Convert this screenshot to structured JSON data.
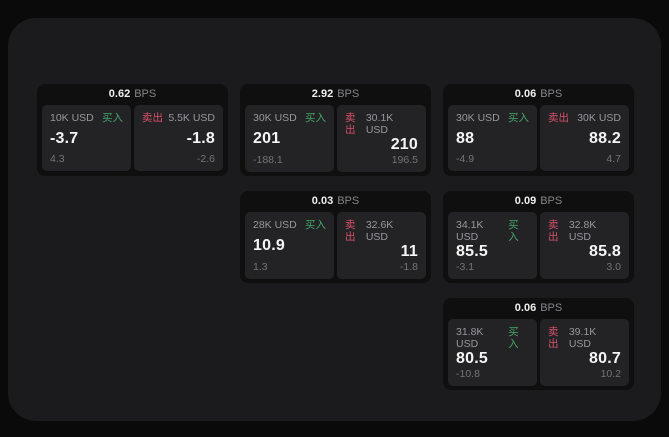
{
  "labels": {
    "buy": "买入",
    "sell": "卖出",
    "bps_unit": "BPS"
  },
  "colors": {
    "buy_accent": "#45a469",
    "sell_accent": "#d8506a",
    "panel_bg": "#1b1b1d",
    "card_bg": "#0f0f10",
    "tile_bg": "#232325"
  },
  "cards": [
    {
      "row": 0,
      "col": 0,
      "bps": "0.62",
      "buy": {
        "amount": "10K USD",
        "value": "-3.7",
        "change": "4.3"
      },
      "sell": {
        "amount": "5.5K USD",
        "value": "-1.8",
        "change": "-2.6"
      }
    },
    {
      "row": 0,
      "col": 1,
      "bps": "2.92",
      "buy": {
        "amount": "30K USD",
        "value": "201",
        "change": "-188.1"
      },
      "sell": {
        "amount": "30.1K USD",
        "value": "210",
        "change": "196.5"
      }
    },
    {
      "row": 0,
      "col": 2,
      "bps": "0.06",
      "buy": {
        "amount": "30K USD",
        "value": "88",
        "change": "-4.9"
      },
      "sell": {
        "amount": "30K USD",
        "value": "88.2",
        "change": "4.7"
      }
    },
    {
      "row": 1,
      "col": 1,
      "bps": "0.03",
      "buy": {
        "amount": "28K USD",
        "value": "10.9",
        "change": "1.3"
      },
      "sell": {
        "amount": "32.6K USD",
        "value": "11",
        "change": "-1.8"
      }
    },
    {
      "row": 1,
      "col": 2,
      "bps": "0.09",
      "buy": {
        "amount": "34.1K USD",
        "value": "85.5",
        "change": "-3.1"
      },
      "sell": {
        "amount": "32.8K USD",
        "value": "85.8",
        "change": "3.0"
      }
    },
    {
      "row": 2,
      "col": 2,
      "bps": "0.06",
      "buy": {
        "amount": "31.8K USD",
        "value": "80.5",
        "change": "-10.8"
      },
      "sell": {
        "amount": "39.1K USD",
        "value": "80.7",
        "change": "10.2"
      }
    }
  ]
}
